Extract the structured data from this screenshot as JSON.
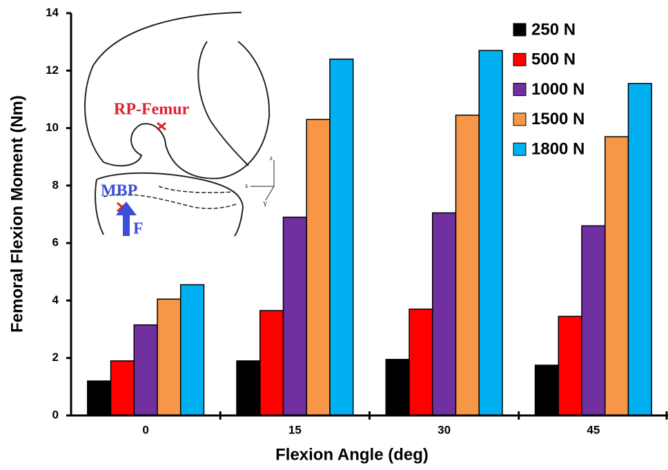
{
  "chart_data": {
    "type": "bar",
    "xlabel": "Flexion Angle (deg)",
    "ylabel": "Femoral Flexion Moment (Nm)",
    "categories": [
      "0",
      "15",
      "30",
      "45"
    ],
    "series": [
      {
        "name": "250 N",
        "color": "#000000",
        "values": [
          1.2,
          1.9,
          1.95,
          1.75
        ]
      },
      {
        "name": "500 N",
        "color": "#ff0000",
        "values": [
          1.9,
          3.65,
          3.7,
          3.45
        ]
      },
      {
        "name": "1000 N",
        "color": "#7030a0",
        "values": [
          3.15,
          6.9,
          7.05,
          6.6
        ]
      },
      {
        "name": "1500 N",
        "color": "#f79646",
        "values": [
          4.05,
          10.3,
          10.45,
          9.7
        ]
      },
      {
        "name": "1800 N",
        "color": "#00b0f0",
        "values": [
          4.55,
          12.4,
          12.7,
          11.55
        ]
      }
    ],
    "ylim": [
      0,
      14
    ],
    "yticks": [
      0,
      2,
      4,
      6,
      8,
      10,
      12,
      14
    ],
    "grid": false,
    "legend": "upper right",
    "annotations": [
      "RP-Femur",
      "MBP",
      "F",
      "z",
      "x",
      "Y"
    ]
  }
}
